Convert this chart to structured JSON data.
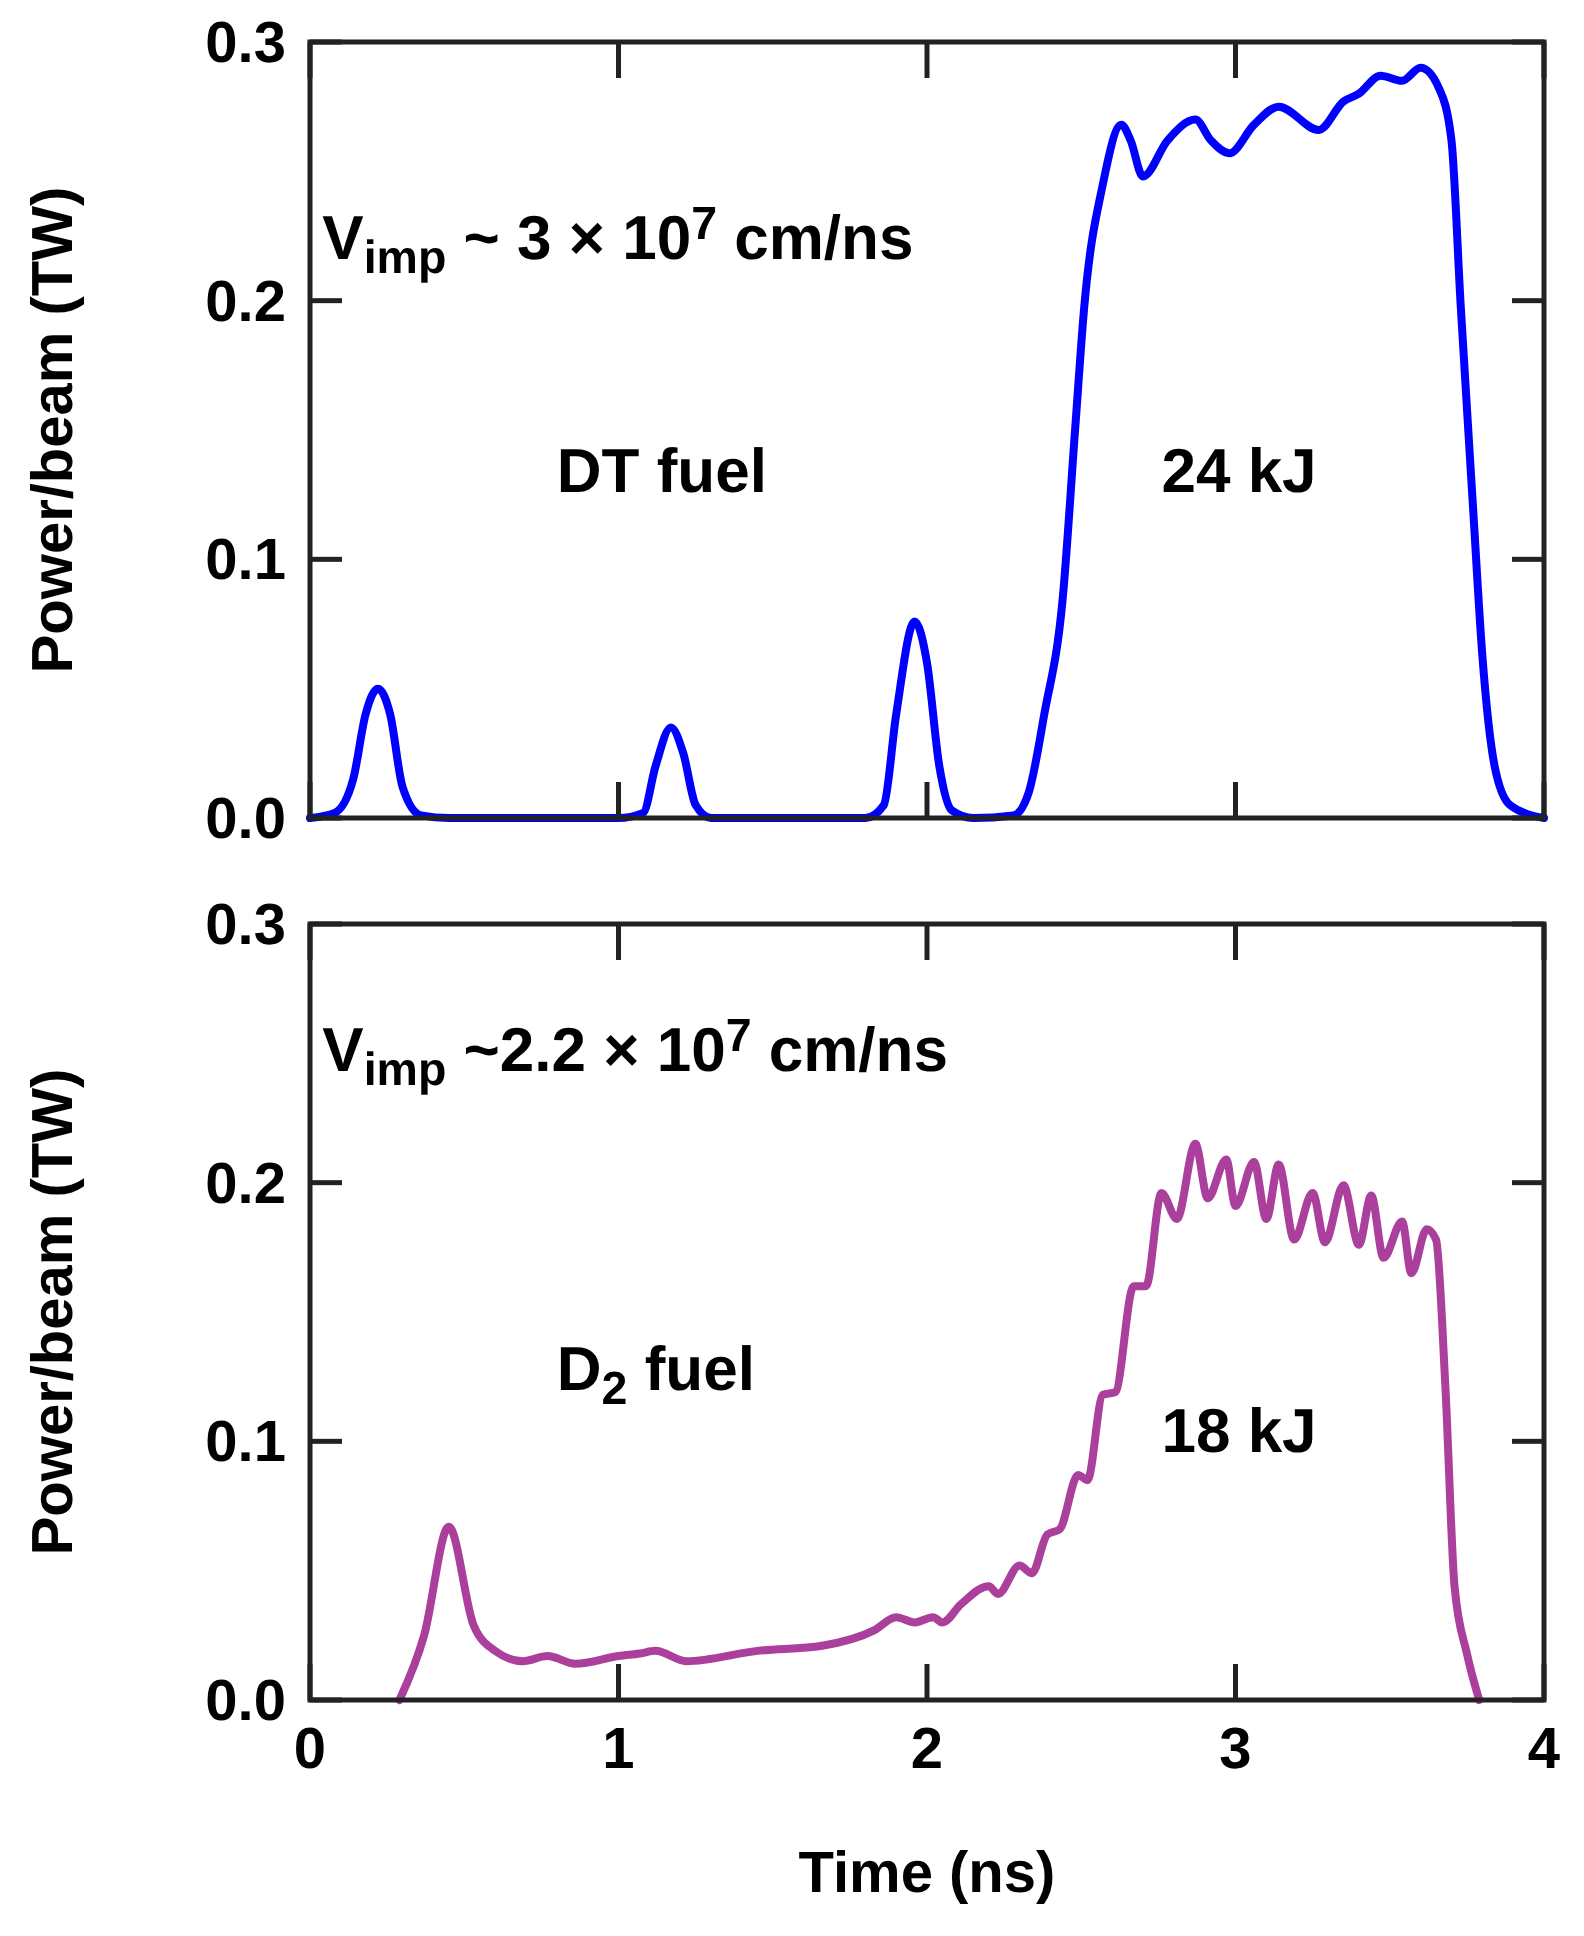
{
  "chart_data": [
    {
      "type": "line",
      "ylabel": "Power/beam (TW)",
      "xlim": [
        0,
        4
      ],
      "xticks": [
        0,
        1,
        2,
        3,
        4
      ],
      "ylim": [
        0,
        0.3
      ],
      "yticks": [
        {
          "value": 0,
          "label": "0.0"
        },
        0.1,
        0.2,
        0.3
      ],
      "tick_labels": "y",
      "annotations": [
        "V$_{imp}$ ~ 3 × 10$^{7}$ cm/ns",
        "DT fuel",
        "24 kJ"
      ],
      "series": [
        {
          "color": "#0000ff",
          "x": [
            0,
            0.08,
            0.14,
            0.18,
            0.22,
            0.26,
            0.3,
            0.36,
            0.45,
            1.0,
            1.08,
            1.12,
            1.17,
            1.21,
            1.25,
            1.3,
            1.8,
            1.86,
            1.9,
            1.96,
            2.0,
            2.04,
            2.08,
            2.15,
            2.28,
            2.33,
            2.38,
            2.44,
            2.48,
            2.51,
            2.57,
            2.63,
            2.66,
            2.7,
            2.78,
            2.87,
            2.92,
            2.98,
            3.06,
            3.14,
            3.27,
            3.35,
            3.4,
            3.47,
            3.54,
            3.6,
            3.66,
            3.7,
            3.73,
            3.77,
            3.8,
            3.84,
            3.89,
            4.0
          ],
          "values": [
            0,
            0.002,
            0.015,
            0.04,
            0.05,
            0.04,
            0.012,
            0.001,
            0,
            0,
            0.002,
            0.02,
            0.035,
            0.025,
            0.005,
            0,
            0,
            0.005,
            0.04,
            0.076,
            0.06,
            0.02,
            0.003,
            0,
            0.001,
            0.01,
            0.04,
            0.085,
            0.15,
            0.198,
            0.245,
            0.268,
            0.262,
            0.248,
            0.262,
            0.27,
            0.262,
            0.257,
            0.268,
            0.275,
            0.266,
            0.277,
            0.28,
            0.287,
            0.285,
            0.29,
            0.282,
            0.262,
            0.198,
            0.12,
            0.063,
            0.02,
            0.005,
            0
          ]
        }
      ]
    },
    {
      "type": "line",
      "xlabel": "Time (ns)",
      "ylabel": "Power/beam (TW)",
      "xlim": [
        0,
        4
      ],
      "xticks": [
        0,
        1,
        2,
        3,
        4
      ],
      "ylim": [
        0,
        0.3
      ],
      "yticks": [
        {
          "value": 0,
          "label": "0.0"
        },
        0.1,
        0.2,
        0.3
      ],
      "annotations": [
        "V$_{imp}$ ~2.2 × 10$^{7}$ cm/ns",
        "D$_{2}$ fuel",
        "18 kJ"
      ],
      "series": [
        {
          "color": "#aa3f9c",
          "x": [
            0.29,
            0.37,
            0.45,
            0.53,
            0.6,
            0.69,
            0.77,
            0.86,
            1.0,
            1.07,
            1.12,
            1.22,
            1.45,
            1.66,
            1.83,
            1.9,
            1.96,
            2.02,
            2.05,
            2.11,
            2.2,
            2.23,
            2.3,
            2.34,
            2.39,
            2.43,
            2.49,
            2.52,
            2.57,
            2.61,
            2.67,
            2.71,
            2.76,
            2.81,
            2.87,
            2.91,
            2.97,
            3.0,
            3.06,
            3.1,
            3.14,
            3.19,
            3.25,
            3.29,
            3.35,
            3.4,
            3.44,
            3.48,
            3.54,
            3.57,
            3.62,
            3.65,
            3.68,
            3.71,
            3.75,
            3.79
          ],
          "values": [
            0,
            0.025,
            0.067,
            0.029,
            0.019,
            0.015,
            0.017,
            0.014,
            0.017,
            0.018,
            0.019,
            0.015,
            0.019,
            0.021,
            0.027,
            0.032,
            0.03,
            0.032,
            0.03,
            0.037,
            0.044,
            0.041,
            0.052,
            0.049,
            0.064,
            0.066,
            0.087,
            0.085,
            0.118,
            0.119,
            0.16,
            0.16,
            0.196,
            0.186,
            0.215,
            0.194,
            0.209,
            0.191,
            0.208,
            0.186,
            0.207,
            0.178,
            0.196,
            0.177,
            0.199,
            0.176,
            0.195,
            0.171,
            0.185,
            0.165,
            0.182,
            0.178,
            0.122,
            0.044,
            0.018,
            0
          ]
        }
      ]
    }
  ]
}
